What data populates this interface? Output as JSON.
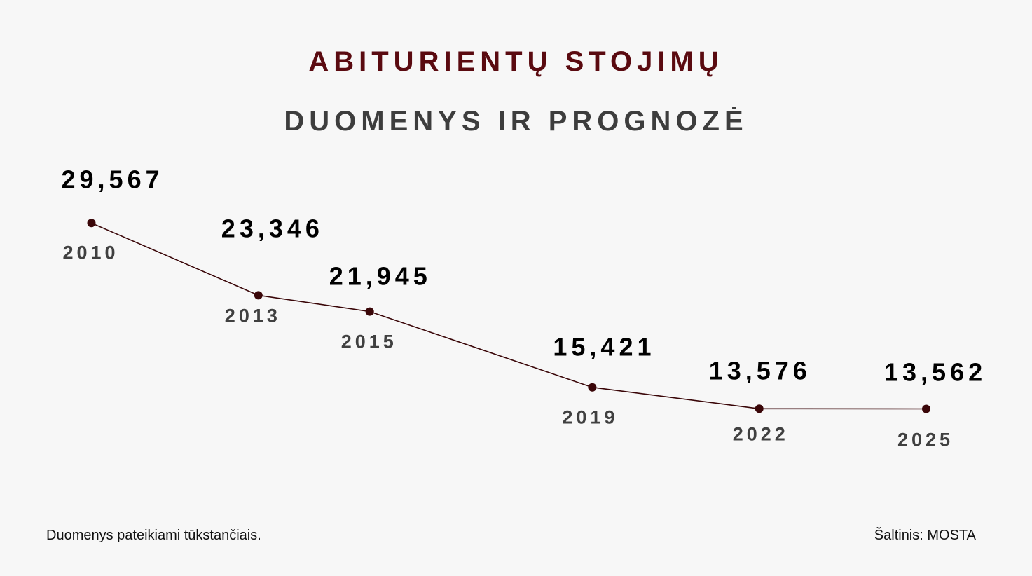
{
  "colors": {
    "background": "#f7f7f7",
    "title": "#5a0a10",
    "subtitle": "#3d3d3d",
    "line": "#3a0608",
    "marker": "#3a0608",
    "value_text": "#000000",
    "year_text": "#404040"
  },
  "chart_data": {
    "type": "line",
    "title": "ABITURIENTŲ STOJIMŲ",
    "subtitle": "DUOMENYS IR PROGNOZĖ",
    "x": [
      2010,
      2013,
      2015,
      2019,
      2022,
      2025
    ],
    "x_labels": [
      "2010",
      "2013",
      "2015",
      "2019",
      "2022",
      "2025"
    ],
    "series": [
      {
        "values": [
          29567,
          23346,
          21945,
          15421,
          13576,
          13562
        ],
        "labels": [
          "29,567",
          "23,346",
          "21,945",
          "15,421",
          "13,576",
          "13,562"
        ]
      }
    ],
    "axes_visible": false,
    "grid": false,
    "legend": "none"
  },
  "footer": {
    "note": "Duomenys pateikiami tūkstančiais.",
    "source": "Šaltinis: MOSTA"
  }
}
